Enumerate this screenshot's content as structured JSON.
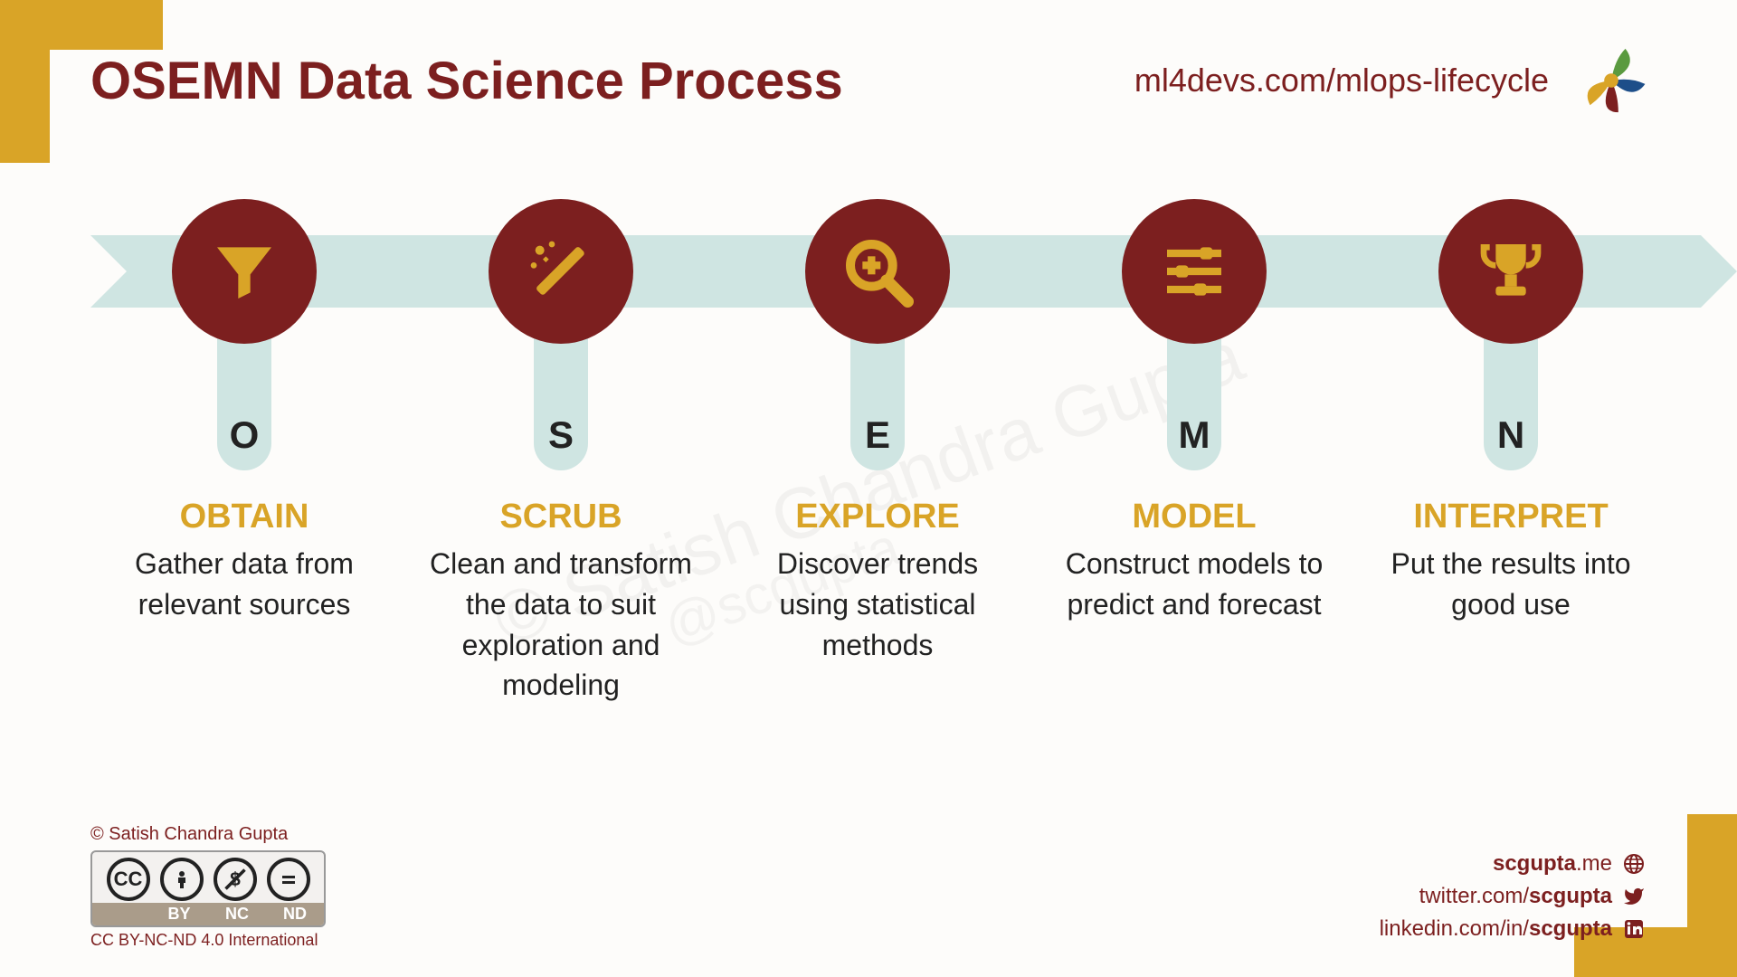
{
  "title": "OSEMN Data Science Process",
  "header_url": "ml4devs.com/mlops-lifecycle",
  "colors": {
    "accent_brown": "#7c1f1f",
    "accent_gold": "#d9a427",
    "band": "#cfe5e2",
    "bg": "#fdfcfa"
  },
  "steps": [
    {
      "letter": "O",
      "title": "OBTAIN",
      "desc": "Gather data from relevant sources",
      "icon": "funnel"
    },
    {
      "letter": "S",
      "title": "SCRUB",
      "desc": "Clean and transform the data to suit exploration and modeling",
      "icon": "wand"
    },
    {
      "letter": "E",
      "title": "EXPLORE",
      "desc": "Discover trends using statistical methods",
      "icon": "zoom"
    },
    {
      "letter": "M",
      "title": "MODEL",
      "desc": "Construct models to predict and forecast",
      "icon": "sliders"
    },
    {
      "letter": "N",
      "title": "INTERPRET",
      "desc": "Put the results into good use",
      "icon": "trophy"
    }
  ],
  "copyright": "© Satish Chandra Gupta",
  "cc_labels": [
    "",
    "BY",
    "NC",
    "ND"
  ],
  "cc_text": "CC BY-NC-ND 4.0 International",
  "social": {
    "site": {
      "prefix": "",
      "handle": "scgupta",
      "suffix": ".me",
      "icon": "globe"
    },
    "twitter": {
      "prefix": "twitter.com/",
      "handle": "scgupta",
      "suffix": "",
      "icon": "twitter"
    },
    "linkedin": {
      "prefix": "linkedin.com/in/",
      "handle": "scgupta",
      "suffix": "",
      "icon": "linkedin"
    }
  },
  "watermark1": "© Satish Chandra Gupta",
  "watermark2": "@scgupta"
}
